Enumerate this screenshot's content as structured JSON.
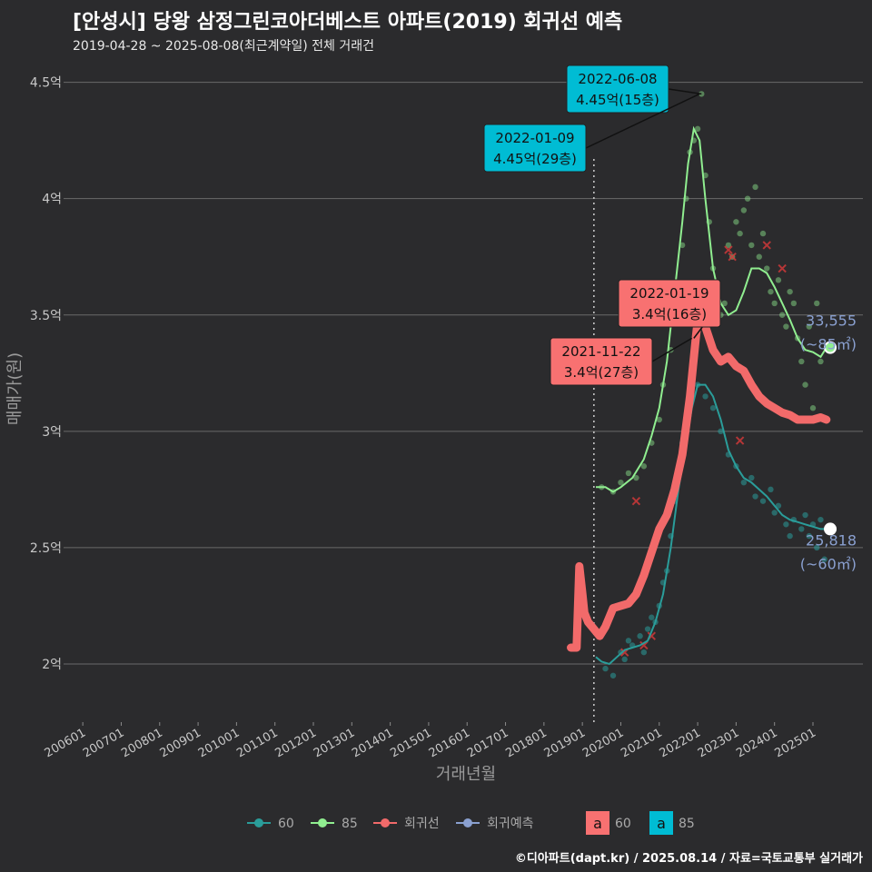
{
  "title": "[안성시] 당왕 삼정그린코아더베스트 아파트(2019) 회귀선 예측",
  "subtitle": "2019-04-28 ~ 2025-08-08(최근계약일) 전체 거래건",
  "credit": "©디아파트(dapt.kr) / 2025.08.14 / 자료=국토교통부 실거래가",
  "colors": {
    "s60": "#2a9d9a",
    "s85": "#90ee90",
    "regression": "#f26a6a",
    "forecast": "#8aa0d0",
    "box60": "#f87171",
    "box85": "#00bcd4",
    "background": "#2b2b2d",
    "grid": "#6a6a6a"
  },
  "chart_data": {
    "type": "scatter",
    "xlabel": "거래년월",
    "ylabel": "매매가(원)",
    "x_ticks": [
      "200601",
      "200701",
      "200801",
      "200901",
      "201001",
      "201101",
      "201201",
      "201301",
      "201401",
      "201501",
      "201601",
      "201701",
      "201801",
      "201901",
      "202001",
      "202101",
      "202201",
      "202301",
      "202401",
      "202501"
    ],
    "y_ticks": [
      {
        "value": 2.0,
        "label": "2억"
      },
      {
        "value": 2.5,
        "label": "2.5억"
      },
      {
        "value": 3.0,
        "label": "3억"
      },
      {
        "value": 3.5,
        "label": "3.5억"
      },
      {
        "value": 4.0,
        "label": "4억"
      },
      {
        "value": 4.5,
        "label": "4.5억"
      }
    ],
    "x_range": [
      2005.5,
      2026.3
    ],
    "y_range": [
      1.75,
      4.6
    ],
    "vline_x": 2019.3,
    "series": [
      {
        "name": "60",
        "line": [
          [
            2019.35,
            2.03
          ],
          [
            2019.5,
            2.01
          ],
          [
            2019.7,
            2.0
          ],
          [
            2019.9,
            2.03
          ],
          [
            2020.1,
            2.06
          ],
          [
            2020.3,
            2.07
          ],
          [
            2020.5,
            2.08
          ],
          [
            2020.7,
            2.1
          ],
          [
            2020.9,
            2.18
          ],
          [
            2021.1,
            2.3
          ],
          [
            2021.3,
            2.5
          ],
          [
            2021.5,
            2.75
          ],
          [
            2021.7,
            2.95
          ],
          [
            2021.85,
            3.1
          ],
          [
            2022.0,
            3.2
          ],
          [
            2022.2,
            3.2
          ],
          [
            2022.4,
            3.15
          ],
          [
            2022.6,
            3.05
          ],
          [
            2022.8,
            2.92
          ],
          [
            2023.0,
            2.85
          ],
          [
            2023.2,
            2.8
          ],
          [
            2023.4,
            2.78
          ],
          [
            2023.6,
            2.75
          ],
          [
            2023.8,
            2.72
          ],
          [
            2024.0,
            2.68
          ],
          [
            2024.2,
            2.64
          ],
          [
            2024.4,
            2.62
          ],
          [
            2024.6,
            2.61
          ],
          [
            2024.8,
            2.6
          ],
          [
            2025.0,
            2.59
          ],
          [
            2025.2,
            2.58
          ],
          [
            2025.5,
            2.58
          ]
        ],
        "points": [
          [
            2019.6,
            1.98
          ],
          [
            2019.8,
            1.95
          ],
          [
            2020.0,
            2.05
          ],
          [
            2020.1,
            2.02
          ],
          [
            2020.2,
            2.1
          ],
          [
            2020.3,
            2.08
          ],
          [
            2020.5,
            2.12
          ],
          [
            2020.6,
            2.05
          ],
          [
            2020.7,
            2.15
          ],
          [
            2020.8,
            2.2
          ],
          [
            2020.9,
            2.18
          ],
          [
            2021.0,
            2.25
          ],
          [
            2021.1,
            2.35
          ],
          [
            2021.2,
            2.4
          ],
          [
            2021.3,
            2.55
          ],
          [
            2021.4,
            2.7
          ],
          [
            2021.5,
            2.8
          ],
          [
            2021.6,
            2.95
          ],
          [
            2021.7,
            3.05
          ],
          [
            2021.8,
            3.15
          ],
          [
            2022.0,
            3.2
          ],
          [
            2022.2,
            3.15
          ],
          [
            2022.4,
            3.1
          ],
          [
            2022.6,
            3.0
          ],
          [
            2022.8,
            2.9
          ],
          [
            2023.0,
            2.85
          ],
          [
            2023.2,
            2.78
          ],
          [
            2023.4,
            2.8
          ],
          [
            2023.5,
            2.72
          ],
          [
            2023.7,
            2.7
          ],
          [
            2023.9,
            2.75
          ],
          [
            2024.0,
            2.65
          ],
          [
            2024.1,
            2.68
          ],
          [
            2024.3,
            2.6
          ],
          [
            2024.4,
            2.55
          ],
          [
            2024.5,
            2.62
          ],
          [
            2024.7,
            2.58
          ],
          [
            2024.8,
            2.64
          ],
          [
            2024.9,
            2.55
          ],
          [
            2025.0,
            2.6
          ],
          [
            2025.1,
            2.5
          ],
          [
            2025.2,
            2.62
          ],
          [
            2025.3,
            2.45
          ]
        ]
      },
      {
        "name": "85",
        "line": [
          [
            2019.35,
            2.76
          ],
          [
            2019.6,
            2.76
          ],
          [
            2019.8,
            2.74
          ],
          [
            2020.0,
            2.76
          ],
          [
            2020.3,
            2.8
          ],
          [
            2020.6,
            2.88
          ],
          [
            2020.8,
            2.98
          ],
          [
            2021.0,
            3.1
          ],
          [
            2021.2,
            3.3
          ],
          [
            2021.4,
            3.6
          ],
          [
            2021.6,
            3.9
          ],
          [
            2021.75,
            4.15
          ],
          [
            2021.9,
            4.3
          ],
          [
            2022.05,
            4.25
          ],
          [
            2022.2,
            4.0
          ],
          [
            2022.4,
            3.7
          ],
          [
            2022.6,
            3.55
          ],
          [
            2022.8,
            3.5
          ],
          [
            2023.0,
            3.52
          ],
          [
            2023.2,
            3.6
          ],
          [
            2023.4,
            3.7
          ],
          [
            2023.6,
            3.7
          ],
          [
            2023.8,
            3.68
          ],
          [
            2024.0,
            3.62
          ],
          [
            2024.2,
            3.55
          ],
          [
            2024.4,
            3.48
          ],
          [
            2024.6,
            3.4
          ],
          [
            2024.8,
            3.35
          ],
          [
            2025.0,
            3.34
          ],
          [
            2025.2,
            3.32
          ],
          [
            2025.35,
            3.36
          ]
        ],
        "points": [
          [
            2019.5,
            2.76
          ],
          [
            2019.8,
            2.74
          ],
          [
            2020.0,
            2.78
          ],
          [
            2020.2,
            2.82
          ],
          [
            2020.4,
            2.8
          ],
          [
            2020.6,
            2.85
          ],
          [
            2020.8,
            2.95
          ],
          [
            2021.0,
            3.05
          ],
          [
            2021.1,
            3.2
          ],
          [
            2021.3,
            3.35
          ],
          [
            2021.5,
            3.6
          ],
          [
            2021.6,
            3.8
          ],
          [
            2021.7,
            4.0
          ],
          [
            2021.8,
            4.2
          ],
          [
            2021.9,
            4.25
          ],
          [
            2022.0,
            4.3
          ],
          [
            2022.1,
            4.45
          ],
          [
            2022.2,
            4.1
          ],
          [
            2022.3,
            3.9
          ],
          [
            2022.4,
            3.7
          ],
          [
            2022.5,
            3.6
          ],
          [
            2022.6,
            3.5
          ],
          [
            2022.7,
            3.55
          ],
          [
            2022.8,
            3.8
          ],
          [
            2022.9,
            3.75
          ],
          [
            2023.0,
            3.9
          ],
          [
            2023.1,
            3.85
          ],
          [
            2023.2,
            3.95
          ],
          [
            2023.3,
            4.0
          ],
          [
            2023.4,
            3.8
          ],
          [
            2023.5,
            4.05
          ],
          [
            2023.6,
            3.75
          ],
          [
            2023.7,
            3.85
          ],
          [
            2023.8,
            3.7
          ],
          [
            2023.9,
            3.6
          ],
          [
            2024.0,
            3.55
          ],
          [
            2024.1,
            3.65
          ],
          [
            2024.2,
            3.5
          ],
          [
            2024.3,
            3.45
          ],
          [
            2024.4,
            3.6
          ],
          [
            2024.5,
            3.55
          ],
          [
            2024.6,
            3.4
          ],
          [
            2024.7,
            3.3
          ],
          [
            2024.8,
            3.2
          ],
          [
            2024.9,
            3.45
          ],
          [
            2025.0,
            3.1
          ],
          [
            2025.1,
            3.55
          ],
          [
            2025.2,
            3.3
          ]
        ]
      },
      {
        "name": "회귀선",
        "line": [
          [
            2018.7,
            2.07
          ],
          [
            2018.85,
            2.07
          ],
          [
            2018.92,
            2.42
          ],
          [
            2019.0,
            2.3
          ],
          [
            2019.05,
            2.22
          ],
          [
            2019.15,
            2.18
          ],
          [
            2019.3,
            2.15
          ],
          [
            2019.45,
            2.12
          ],
          [
            2019.6,
            2.16
          ],
          [
            2019.8,
            2.24
          ],
          [
            2020.0,
            2.25
          ],
          [
            2020.2,
            2.26
          ],
          [
            2020.4,
            2.3
          ],
          [
            2020.6,
            2.38
          ],
          [
            2020.8,
            2.48
          ],
          [
            2021.0,
            2.58
          ],
          [
            2021.2,
            2.64
          ],
          [
            2021.4,
            2.75
          ],
          [
            2021.6,
            2.9
          ],
          [
            2021.8,
            3.15
          ],
          [
            2021.95,
            3.4
          ],
          [
            2022.05,
            3.55
          ],
          [
            2022.2,
            3.45
          ],
          [
            2022.4,
            3.35
          ],
          [
            2022.6,
            3.3
          ],
          [
            2022.8,
            3.32
          ],
          [
            2023.0,
            3.28
          ],
          [
            2023.2,
            3.26
          ],
          [
            2023.4,
            3.2
          ],
          [
            2023.6,
            3.15
          ],
          [
            2023.8,
            3.12
          ],
          [
            2024.0,
            3.1
          ],
          [
            2024.2,
            3.08
          ],
          [
            2024.4,
            3.07
          ],
          [
            2024.6,
            3.05
          ],
          [
            2024.8,
            3.05
          ],
          [
            2025.0,
            3.05
          ],
          [
            2025.2,
            3.06
          ],
          [
            2025.35,
            3.05
          ]
        ],
        "points": [
          [
            2020.4,
            2.7
          ],
          [
            2020.6,
            2.08
          ],
          [
            2020.8,
            2.12
          ],
          [
            2022.8,
            3.78
          ],
          [
            2022.9,
            3.75
          ],
          [
            2023.1,
            2.96
          ],
          [
            2023.8,
            3.8
          ],
          [
            2024.2,
            3.7
          ],
          [
            2020.1,
            2.05
          ]
        ]
      },
      {
        "name": "회귀예측",
        "points": [
          [
            2025.45,
            3.36
          ],
          [
            2025.45,
            2.58
          ]
        ]
      }
    ],
    "annotations": [
      {
        "date": "2022-06-08",
        "price": "4.45억(15층)",
        "box": "85",
        "x": 2022.1,
        "y": 4.45
      },
      {
        "date": "2022-01-09",
        "price": "4.45억(29층)",
        "box": "85",
        "x": 2022.05,
        "y": 4.45
      },
      {
        "date": "2022-01-19",
        "price": "3.4억(16층)",
        "box": "60",
        "x": 2021.9,
        "y": 3.4
      },
      {
        "date": "2021-11-22",
        "price": "3.4억(27층)",
        "box": "60",
        "x": 2021.85,
        "y": 3.4
      }
    ],
    "forecast_labels": [
      {
        "value": "33,555",
        "unit": "(~85㎡)"
      },
      {
        "value": "25,818",
        "unit": "(~60㎡)"
      }
    ],
    "legend": {
      "position": "bottom",
      "items": [
        "60",
        "85",
        "회귀선",
        "회귀예측"
      ],
      "box_letter": "a",
      "box_items": [
        "60",
        "85"
      ]
    }
  }
}
